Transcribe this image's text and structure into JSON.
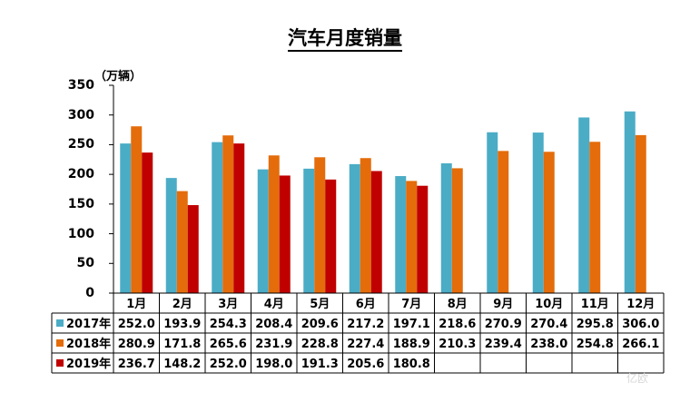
{
  "chart_data": {
    "type": "bar",
    "title": "汽车月度销量",
    "unit_label": "（万辆）",
    "ylim": [
      0,
      350
    ],
    "yticks": [
      "0",
      "50",
      "100",
      "150",
      "200",
      "250",
      "300",
      "350"
    ],
    "categories": [
      "1月",
      "2月",
      "3月",
      "4月",
      "5月",
      "6月",
      "7月",
      "8月",
      "9月",
      "10月",
      "11月",
      "12月"
    ],
    "series": [
      {
        "name": "2017年",
        "color": "#4bacc6",
        "values": [
          252.0,
          193.9,
          254.3,
          208.4,
          209.6,
          217.2,
          197.1,
          218.6,
          270.9,
          270.4,
          295.8,
          306.0
        ],
        "labels": [
          "252.0",
          "193.9",
          "254.3",
          "208.4",
          "209.6",
          "217.2",
          "197.1",
          "218.6",
          "270.9",
          "270.4",
          "295.8",
          "306.0"
        ]
      },
      {
        "name": "2018年",
        "color": "#e46c0a",
        "values": [
          280.9,
          171.8,
          265.6,
          231.9,
          228.8,
          227.4,
          188.9,
          210.3,
          239.4,
          238.0,
          254.8,
          266.1
        ],
        "labels": [
          "280.9",
          "171.8",
          "265.6",
          "231.9",
          "228.8",
          "227.4",
          "188.9",
          "210.3",
          "239.4",
          "238.0",
          "254.8",
          "266.1"
        ]
      },
      {
        "name": "2019年",
        "color": "#c00000",
        "values": [
          236.7,
          148.2,
          252.0,
          198.0,
          191.3,
          205.6,
          180.8,
          null,
          null,
          null,
          null,
          null
        ],
        "labels": [
          "236.7",
          "148.2",
          "252.0",
          "198.0",
          "191.3",
          "205.6",
          "180.8",
          "",
          "",
          "",
          "",
          ""
        ]
      }
    ],
    "grid": false,
    "legend": "table-left"
  },
  "watermark": "亿欧"
}
